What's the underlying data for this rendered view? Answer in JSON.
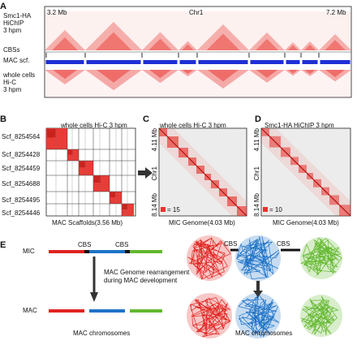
{
  "panel_a": {
    "letter": "A",
    "coord_start": "3.2 Mb",
    "coord_end": "7.2 Mb",
    "chrom": "Chr1",
    "track_hichip": [
      "Smc1-HA",
      "HiChIP",
      "3 hpm"
    ],
    "track_cbs": "CBSs",
    "track_mac": "MAC scf.",
    "track_hic": [
      "whole cells",
      "Hi-C",
      "3 hpm"
    ],
    "heatmap_color": "#e8322c",
    "scaffold_color": "#1f2fd6"
  },
  "panel_b": {
    "letter": "B",
    "title": "whole cells Hi-C 3 hpm",
    "scaffolds": [
      "Scf_8254564",
      "Scf_8254428",
      "Scf_8254459",
      "Scf_8254688",
      "Scf_8254495",
      "Scf_8254446"
    ],
    "xlabel": "MAC Scaffolds(3.56 Mb)"
  },
  "panel_c": {
    "letter": "C",
    "title": "whole cells Hi-C 3 hpm",
    "y_top": "4.11 Mb",
    "y_mid": "Chr1",
    "y_bottom": "8.14 Mb",
    "legend": "= 15",
    "xlabel": "MIC Genome(4.03 Mb)"
  },
  "panel_d": {
    "letter": "D",
    "title": "Smc1-HA  HiChIP 3 hpm",
    "y_top": "4.11 Mb",
    "y_mid": "Chr1",
    "y_bottom": "8.14 Mb",
    "legend": "= 10",
    "xlabel": "MIC Genome(4.03 Mb)"
  },
  "panel_e": {
    "letter": "E",
    "mic_label": "MIC",
    "mac_label": "MAC",
    "cbs1": "CBS",
    "cbs2": "CBS",
    "arrow_text": [
      "MAC Genome rearrangement",
      "during MAC development"
    ],
    "mac_chromosomes_left": "MAC chromosomes",
    "cbs3": "CBS",
    "cbs4": "CBS",
    "mac_chromosomes_right": "MAC chromosomes",
    "colors": {
      "red": "#e0231f",
      "blue": "#1e73c8",
      "green": "#62b82e"
    }
  }
}
